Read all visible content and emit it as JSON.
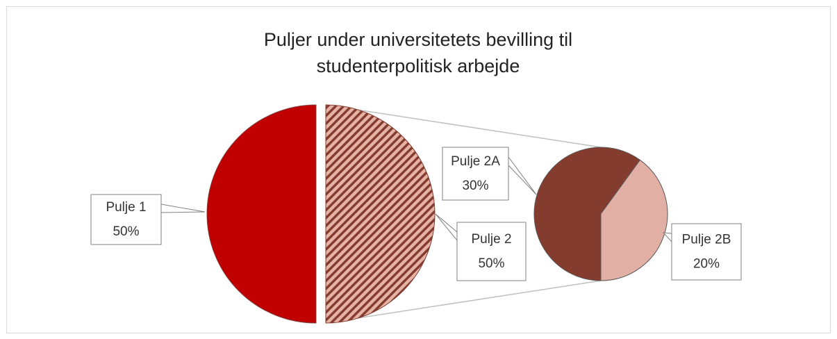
{
  "chart_data": {
    "type": "pie-of-pie",
    "title": "Puljer under universitetets bevilling til studenterpolitisk arbejde",
    "categories": [
      "Pulje 1",
      "Pulje 2"
    ],
    "values": [
      50,
      50
    ],
    "value_labels": [
      "50%",
      "50%"
    ],
    "colors": [
      "#C00000",
      "#E6B2A6"
    ],
    "hatched": [
      false,
      true
    ],
    "hatch_color": "#843C2F",
    "secondary": {
      "categories": [
        "Pulje 2A",
        "Pulje 2B"
      ],
      "values": [
        30,
        20
      ],
      "value_labels": [
        "30%",
        "20%"
      ],
      "colors": [
        "#843C2F",
        "#E2AFA5"
      ]
    }
  }
}
